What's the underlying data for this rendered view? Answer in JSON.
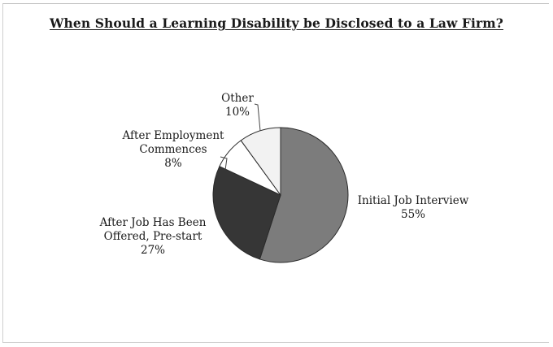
{
  "chart_data": {
    "type": "pie",
    "title": "When Should a Learning Disability be Disclosed to a Law Firm?",
    "slices": [
      {
        "label": [
          "Initial Job Interview"
        ],
        "value": 55,
        "value_label": "55%",
        "color": "#7c7c7c"
      },
      {
        "label": [
          "After Job Has Been",
          "Offered, Pre-start"
        ],
        "value": 27,
        "value_label": "27%",
        "color": "#363636"
      },
      {
        "label": [
          "After Employment",
          "Commences"
        ],
        "value": 8,
        "value_label": "8%",
        "color": "#ffffff"
      },
      {
        "label": [
          "Other"
        ],
        "value": 10,
        "value_label": "10%",
        "color": "#f2f2f2"
      }
    ]
  }
}
